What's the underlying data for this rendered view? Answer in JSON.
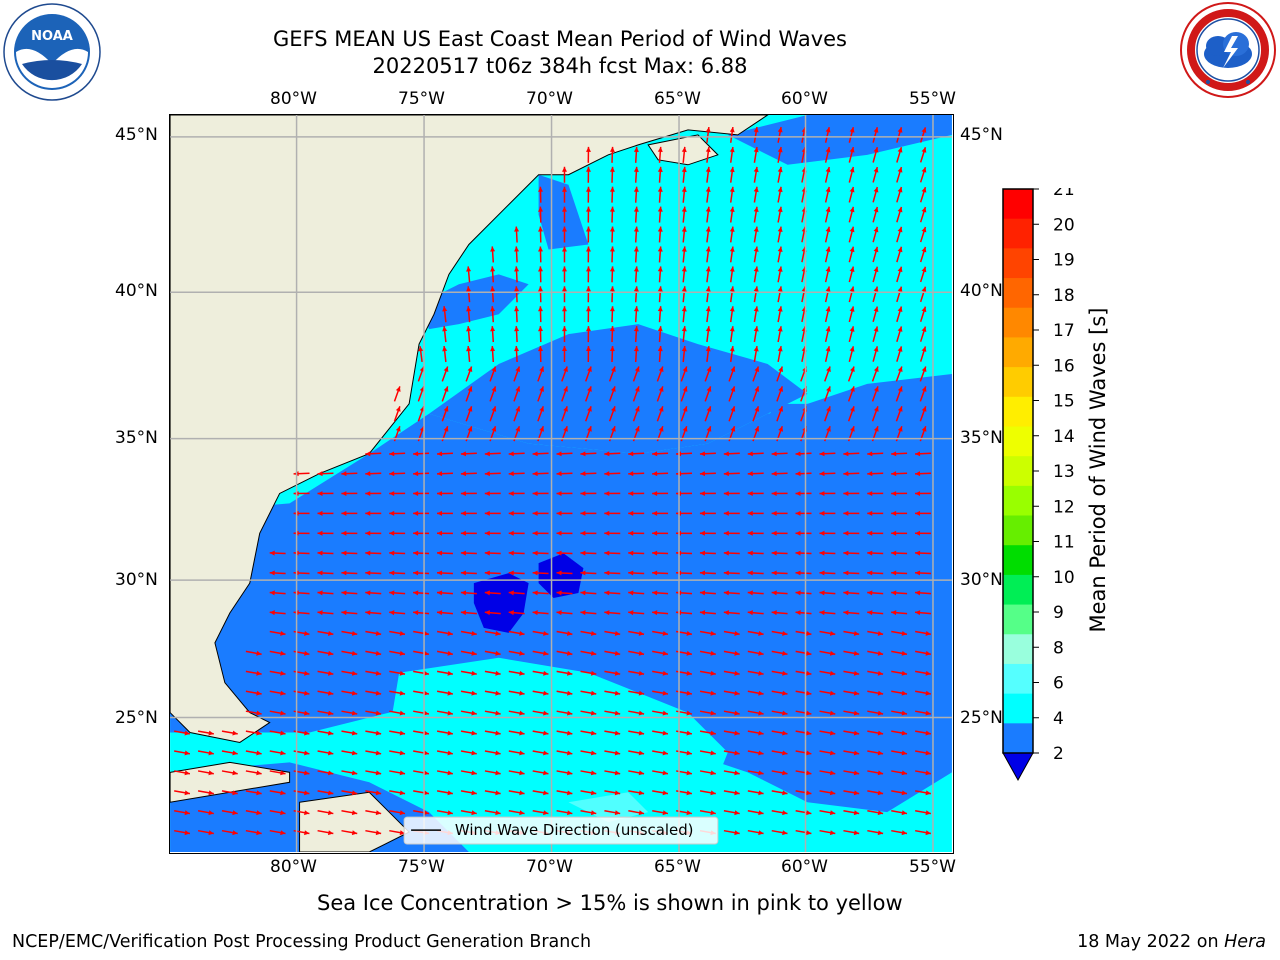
{
  "title_line1": "GEFS MEAN US East Coast Mean Period of Wind Waves",
  "title_line2": "20220517 t06z 384h fcst   Max: 6.88",
  "map": {
    "lon_labels": [
      "80°W",
      "75°W",
      "70°W",
      "65°W",
      "60°W",
      "55°W"
    ],
    "lat_labels": [
      "45°N",
      "40°N",
      "35°N",
      "30°N",
      "25°N"
    ],
    "legend_label": "Wind Wave Direction (unscaled)",
    "colors": {
      "land": "#eeeedc",
      "wave_2_4": "#1a7cff",
      "wave_4_6": "#00ffff",
      "wave_6_8": "#50ffff",
      "wave_under_2": "#0000e6",
      "arrow": "#ff0000",
      "grid": "#b0b0b0"
    }
  },
  "colorbar": {
    "label": "Mean Period of Wind Waves [s]",
    "ticks": [
      "21",
      "20",
      "19",
      "18",
      "17",
      "16",
      "15",
      "14",
      "13",
      "12",
      "11",
      "10",
      "9",
      "8",
      "6",
      "4",
      "2"
    ],
    "colors": [
      "#ff0000",
      "#ff2200",
      "#ff4400",
      "#ff6600",
      "#ff8800",
      "#ffaa00",
      "#ffcc00",
      "#ffee00",
      "#eeff00",
      "#ccff00",
      "#99ff00",
      "#66ee00",
      "#00dd00",
      "#00ee55",
      "#55ff88",
      "#99ffdd",
      "#55ffff",
      "#00ffff",
      "#1a7cff"
    ],
    "under_color": "#0000e6"
  },
  "bottom_note": "Sea Ice Concentration > 15% is shown in pink to yellow",
  "footer_left": "NCEP/EMC/Verification Post Processing Product Generation Branch",
  "footer_date": "18 May 2022 on",
  "footer_machine": "Hera",
  "logos": {
    "noaa_text": "NOAA"
  }
}
